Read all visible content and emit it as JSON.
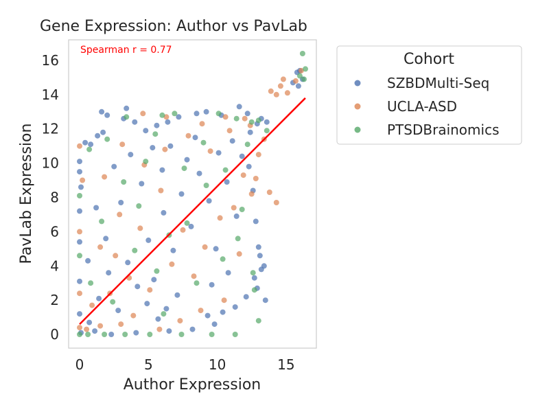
{
  "chart_data": {
    "type": "scatter",
    "title": "Gene Expression: Author vs PavLab",
    "xlabel": "Author Expression",
    "ylabel": "PavLab Expression",
    "xlim": [
      -0.8,
      17.2
    ],
    "ylim": [
      -0.8,
      17.2
    ],
    "xticks": [
      0,
      5,
      10,
      15
    ],
    "yticks": [
      0,
      2,
      4,
      6,
      8,
      10,
      12,
      14,
      16
    ],
    "grid": false,
    "annotation": "Spearman r = 0.77",
    "legend": {
      "title": "Cohort",
      "placement": "outside-right"
    },
    "series": [
      {
        "name": "SZBDMulti-Seq",
        "color": "#4c72b0",
        "points": [
          [
            0.0,
            10.1
          ],
          [
            0.0,
            9.5
          ],
          [
            0.0,
            7.2
          ],
          [
            0.0,
            5.4
          ],
          [
            0.0,
            3.1
          ],
          [
            0.0,
            1.2
          ],
          [
            0.1,
            8.6
          ],
          [
            0.1,
            0.1
          ],
          [
            0.4,
            11.2
          ],
          [
            0.8,
            11.1
          ],
          [
            1.6,
            13.0
          ],
          [
            2.0,
            12.8
          ],
          [
            1.3,
            11.6
          ],
          [
            1.7,
            11.8
          ],
          [
            3.2,
            12.6
          ],
          [
            3.4,
            13.2
          ],
          [
            4.0,
            12.4
          ],
          [
            4.8,
            11.9
          ],
          [
            5.6,
            12.2
          ],
          [
            6.4,
            12.4
          ],
          [
            7.2,
            12.7
          ],
          [
            8.5,
            12.9
          ],
          [
            9.2,
            13.0
          ],
          [
            10.3,
            12.8
          ],
          [
            11.6,
            13.3
          ],
          [
            12.2,
            12.9
          ],
          [
            12.9,
            12.3
          ],
          [
            13.2,
            12.6
          ],
          [
            13.6,
            12.4
          ],
          [
            12.4,
            11.8
          ],
          [
            11.8,
            10.4
          ],
          [
            12.3,
            9.8
          ],
          [
            12.6,
            8.4
          ],
          [
            12.8,
            6.6
          ],
          [
            13.0,
            5.1
          ],
          [
            13.1,
            4.6
          ],
          [
            13.2,
            3.8
          ],
          [
            13.4,
            4.0
          ],
          [
            12.7,
            3.3
          ],
          [
            12.9,
            2.7
          ],
          [
            13.5,
            2.0
          ],
          [
            12.1,
            2.2
          ],
          [
            11.3,
            1.6
          ],
          [
            10.4,
            1.3
          ],
          [
            9.3,
            1.1
          ],
          [
            9.8,
            0.6
          ],
          [
            8.2,
            0.3
          ],
          [
            6.5,
            0.2
          ],
          [
            4.1,
            0.1
          ],
          [
            2.3,
            0.0
          ],
          [
            1.1,
            0.2
          ],
          [
            0.7,
            0.7
          ],
          [
            1.4,
            2.1
          ],
          [
            2.1,
            3.6
          ],
          [
            2.8,
            1.4
          ],
          [
            3.5,
            4.2
          ],
          [
            4.2,
            2.8
          ],
          [
            5.0,
            5.5
          ],
          [
            5.4,
            3.2
          ],
          [
            6.1,
            7.1
          ],
          [
            6.8,
            4.9
          ],
          [
            7.4,
            8.2
          ],
          [
            8.1,
            6.3
          ],
          [
            8.7,
            9.4
          ],
          [
            9.4,
            7.8
          ],
          [
            10.1,
            10.6
          ],
          [
            10.7,
            8.9
          ],
          [
            11.1,
            11.3
          ],
          [
            9.9,
            5.0
          ],
          [
            11.4,
            6.9
          ],
          [
            10.8,
            3.6
          ],
          [
            9.6,
            2.9
          ],
          [
            3.0,
            7.7
          ],
          [
            2.5,
            9.8
          ],
          [
            1.9,
            5.6
          ],
          [
            1.2,
            7.4
          ],
          [
            0.6,
            4.3
          ],
          [
            3.7,
            10.5
          ],
          [
            4.5,
            8.8
          ],
          [
            5.3,
            10.9
          ],
          [
            6.0,
            9.6
          ],
          [
            6.6,
            11.0
          ],
          [
            7.8,
            10.2
          ],
          [
            8.4,
            11.5
          ],
          [
            7.1,
            2.3
          ],
          [
            6.3,
            1.5
          ],
          [
            5.7,
            0.9
          ],
          [
            4.9,
            1.8
          ],
          [
            15.8,
            15.3
          ],
          [
            15.5,
            14.7
          ],
          [
            15.9,
            14.5
          ],
          [
            16.2,
            14.9
          ],
          [
            16.0,
            15.4
          ]
        ]
      },
      {
        "name": "UCLA-ASD",
        "color": "#dd8452",
        "points": [
          [
            0.0,
            11.0
          ],
          [
            0.0,
            6.0
          ],
          [
            0.0,
            2.4
          ],
          [
            0.0,
            0.4
          ],
          [
            0.2,
            9.0
          ],
          [
            0.5,
            0.3
          ],
          [
            1.5,
            0.5
          ],
          [
            3.0,
            0.6
          ],
          [
            4.6,
            12.9
          ],
          [
            6.3,
            12.7
          ],
          [
            8.9,
            12.3
          ],
          [
            10.6,
            12.7
          ],
          [
            12.0,
            12.6
          ],
          [
            13.9,
            14.2
          ],
          [
            14.3,
            14.0
          ],
          [
            14.6,
            14.5
          ],
          [
            15.1,
            14.1
          ],
          [
            15.7,
            14.8
          ],
          [
            14.8,
            14.9
          ],
          [
            16.1,
            15.4
          ],
          [
            14.3,
            7.7
          ],
          [
            13.8,
            8.3
          ],
          [
            12.5,
            8.2
          ],
          [
            13.0,
            10.5
          ],
          [
            11.9,
            9.3
          ],
          [
            11.2,
            7.4
          ],
          [
            10.2,
            6.8
          ],
          [
            9.1,
            5.1
          ],
          [
            8.3,
            3.4
          ],
          [
            7.5,
            6.1
          ],
          [
            6.7,
            4.1
          ],
          [
            5.9,
            8.4
          ],
          [
            5.1,
            2.6
          ],
          [
            4.4,
            6.2
          ],
          [
            3.6,
            3.3
          ],
          [
            2.9,
            7.0
          ],
          [
            2.2,
            2.4
          ],
          [
            1.5,
            5.1
          ],
          [
            0.9,
            1.7
          ],
          [
            1.8,
            9.2
          ],
          [
            3.1,
            11.1
          ],
          [
            4.7,
            9.9
          ],
          [
            6.2,
            10.8
          ],
          [
            7.9,
            11.6
          ],
          [
            9.5,
            10.7
          ],
          [
            10.9,
            11.9
          ],
          [
            12.4,
            12.2
          ],
          [
            11.6,
            4.7
          ],
          [
            10.5,
            2.0
          ],
          [
            8.8,
            1.4
          ],
          [
            7.3,
            0.8
          ],
          [
            5.8,
            0.3
          ],
          [
            3.9,
            1.1
          ],
          [
            2.6,
            4.6
          ],
          [
            13.4,
            11.4
          ],
          [
            12.8,
            9.1
          ]
        ]
      },
      {
        "name": "PTSDBrainomics",
        "color": "#55a868",
        "points": [
          [
            0.0,
            8.1
          ],
          [
            0.0,
            4.6
          ],
          [
            0.0,
            0.0
          ],
          [
            0.6,
            0.0
          ],
          [
            1.8,
            0.0
          ],
          [
            3.3,
            0.0
          ],
          [
            5.1,
            0.0
          ],
          [
            7.4,
            0.0
          ],
          [
            9.6,
            0.0
          ],
          [
            11.3,
            0.0
          ],
          [
            0.7,
            10.8
          ],
          [
            3.4,
            12.7
          ],
          [
            6.0,
            12.8
          ],
          [
            6.9,
            12.9
          ],
          [
            10.1,
            12.9
          ],
          [
            11.4,
            12.6
          ],
          [
            12.5,
            12.4
          ],
          [
            13.6,
            11.9
          ],
          [
            13.0,
            12.5
          ],
          [
            16.2,
            16.4
          ],
          [
            16.4,
            15.5
          ],
          [
            16.3,
            14.9
          ],
          [
            16.0,
            15.1
          ],
          [
            12.6,
            3.6
          ],
          [
            13.0,
            0.8
          ],
          [
            12.7,
            2.6
          ],
          [
            11.5,
            5.6
          ],
          [
            10.4,
            4.4
          ],
          [
            9.2,
            8.7
          ],
          [
            8.5,
            3.0
          ],
          [
            7.6,
            9.7
          ],
          [
            6.5,
            5.8
          ],
          [
            5.6,
            3.7
          ],
          [
            4.8,
            10.1
          ],
          [
            4.0,
            4.9
          ],
          [
            3.2,
            8.9
          ],
          [
            2.4,
            1.9
          ],
          [
            1.6,
            6.6
          ],
          [
            0.8,
            3.0
          ],
          [
            2.0,
            11.4
          ],
          [
            4.3,
            7.5
          ],
          [
            6.1,
            1.2
          ],
          [
            7.8,
            6.5
          ],
          [
            9.0,
            11.2
          ],
          [
            10.6,
            9.6
          ],
          [
            11.8,
            7.3
          ],
          [
            12.2,
            11.1
          ],
          [
            5.5,
            11.7
          ]
        ]
      }
    ],
    "trend_line": {
      "color": "#ff0000",
      "x": [
        0.0,
        16.4
      ],
      "y": [
        0.6,
        13.8
      ]
    }
  }
}
